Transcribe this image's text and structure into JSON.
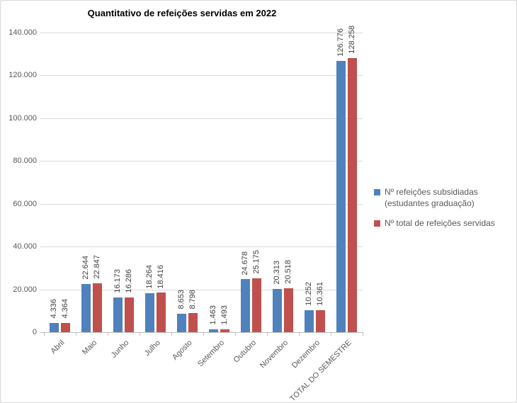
{
  "chart_data": {
    "type": "bar",
    "title": "Quantitativo de refeições servidas em 2022",
    "categories": [
      "Abril",
      "Maio",
      "Junho",
      "Julho",
      "Agosto",
      "Setembro",
      "Outubro",
      "Novembro",
      "Dezembro",
      "TOTAL DO SEMESTRE"
    ],
    "series": [
      {
        "name": "Nº refeições subsidiadas (estudantes graduação)",
        "color": "#4F81BD",
        "values": [
          4336,
          22644,
          16173,
          18264,
          8653,
          1463,
          24678,
          20313,
          10252,
          126776
        ]
      },
      {
        "name": "Nº total de refeições servidas",
        "color": "#C0504D",
        "values": [
          4364,
          22847,
          16286,
          18416,
          8798,
          1493,
          25175,
          20518,
          10361,
          128258
        ]
      }
    ],
    "ylim": [
      0,
      140000
    ],
    "y_tick_step": 20000,
    "y_tick_labels": [
      "0",
      "20.000",
      "40.000",
      "60.000",
      "80.000",
      "100.000",
      "120.000",
      "140.000"
    ],
    "number_format": "thousands separated by dot (pt-BR)",
    "grid": true,
    "legend_position": "right",
    "data_label_rotation": 90,
    "category_label_rotation": 45
  },
  "colors": {
    "background": "#FFFFFF",
    "series1": "#4F81BD",
    "series2": "#C0504D",
    "gridline": "#D9D9D9",
    "axis_line": "#BFBFBF",
    "axis_text": "#595959",
    "data_label_text": "#404040",
    "legend_text": "#595959",
    "title_text": "#000000",
    "chart_border": "#D9D9D9"
  }
}
